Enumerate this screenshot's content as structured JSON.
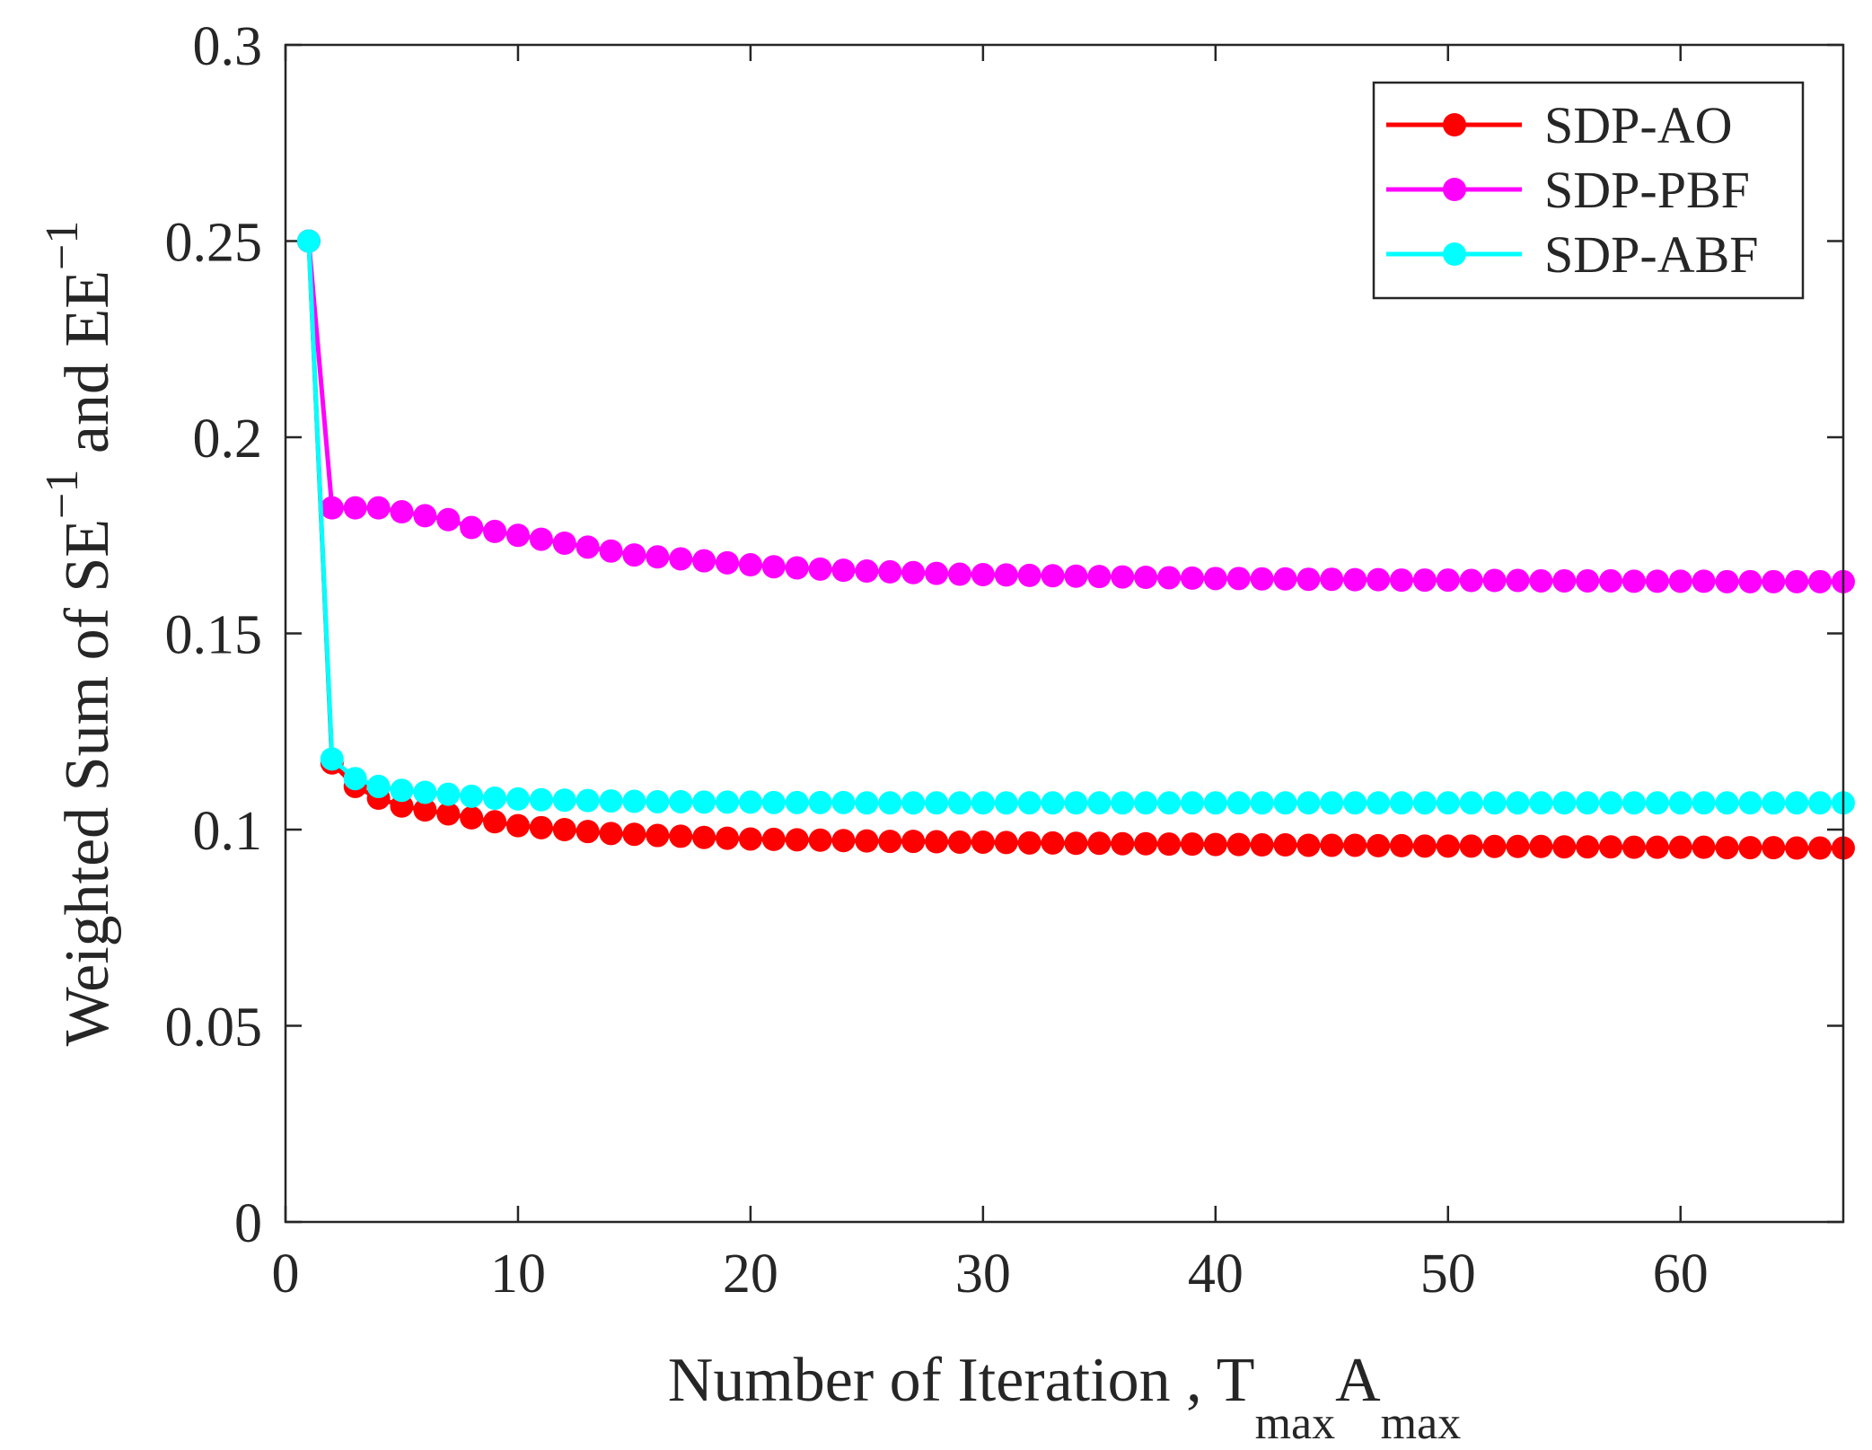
{
  "chart_data": {
    "type": "line",
    "xlabel": {
      "main": "Number of Iteration , T",
      "sub1": "max",
      "mid": "A",
      "sub2": "max"
    },
    "ylabel": {
      "main": "Weighted Sum of SE",
      "sup1": "−1",
      "mid": " and EE",
      "sup2": "−1"
    },
    "xlim": [
      0,
      67
    ],
    "ylim": [
      0,
      0.3
    ],
    "xticks": [
      0,
      10,
      20,
      30,
      40,
      50,
      60
    ],
    "xtick_labels": [
      "0",
      "10",
      "20",
      "30",
      "40",
      "50",
      "60"
    ],
    "yticks": [
      0,
      0.05,
      0.1,
      0.15,
      0.2,
      0.25,
      0.3
    ],
    "ytick_labels": [
      "0",
      "0.05",
      "0.1",
      "0.15",
      "0.2",
      "0.25",
      "0.3"
    ],
    "legend_position": "top-right",
    "x": [
      1,
      2,
      3,
      4,
      5,
      6,
      7,
      8,
      9,
      10,
      11,
      12,
      13,
      14,
      15,
      16,
      17,
      18,
      19,
      20,
      21,
      22,
      23,
      24,
      25,
      26,
      27,
      28,
      29,
      30,
      31,
      32,
      33,
      34,
      35,
      36,
      37,
      38,
      39,
      40,
      41,
      42,
      43,
      44,
      45,
      46,
      47,
      48,
      49,
      50,
      51,
      52,
      53,
      54,
      55,
      56,
      57,
      58,
      59,
      60,
      61,
      62,
      63,
      64,
      65,
      66,
      67
    ],
    "series": [
      {
        "name": "SDP-AO",
        "color": "#ff0000",
        "values": [
          0.25,
          0.117,
          0.111,
          0.108,
          0.106,
          0.105,
          0.104,
          0.103,
          0.102,
          0.101,
          0.1005,
          0.1,
          0.0995,
          0.099,
          0.0988,
          0.0985,
          0.0983,
          0.098,
          0.0978,
          0.0976,
          0.0975,
          0.0974,
          0.0973,
          0.0972,
          0.0971,
          0.097,
          0.097,
          0.0969,
          0.0968,
          0.0968,
          0.0967,
          0.0966,
          0.0966,
          0.0965,
          0.0965,
          0.0964,
          0.0964,
          0.0963,
          0.0963,
          0.0962,
          0.0962,
          0.0961,
          0.0961,
          0.096,
          0.096,
          0.096,
          0.0959,
          0.0959,
          0.0958,
          0.0958,
          0.0958,
          0.0957,
          0.0957,
          0.0957,
          0.0956,
          0.0956,
          0.0956,
          0.0955,
          0.0955,
          0.0955,
          0.0955,
          0.0954,
          0.0954,
          0.0954,
          0.0953,
          0.0953,
          0.0953
        ]
      },
      {
        "name": "SDP-PBF",
        "color": "#ff00ff",
        "values": [
          0.25,
          0.182,
          0.182,
          0.182,
          0.181,
          0.18,
          0.179,
          0.177,
          0.176,
          0.175,
          0.174,
          0.173,
          0.172,
          0.171,
          0.17,
          0.1695,
          0.169,
          0.1685,
          0.168,
          0.1675,
          0.167,
          0.1667,
          0.1664,
          0.1661,
          0.1659,
          0.1657,
          0.1655,
          0.1653,
          0.1651,
          0.165,
          0.1649,
          0.1648,
          0.1647,
          0.1646,
          0.1645,
          0.1644,
          0.1643,
          0.1642,
          0.1641,
          0.164,
          0.164,
          0.1639,
          0.1639,
          0.1638,
          0.1638,
          0.1637,
          0.1637,
          0.1636,
          0.1636,
          0.1636,
          0.1635,
          0.1635,
          0.1635,
          0.1634,
          0.1634,
          0.1634,
          0.1634,
          0.1633,
          0.1633,
          0.1633,
          0.1633,
          0.1632,
          0.1632,
          0.1632,
          0.1632,
          0.1632,
          0.1632
        ]
      },
      {
        "name": "SDP-ABF",
        "color": "#00ffff",
        "values": [
          0.25,
          0.118,
          0.113,
          0.111,
          0.11,
          0.1095,
          0.109,
          0.1085,
          0.108,
          0.1078,
          0.1076,
          0.1075,
          0.1074,
          0.1073,
          0.1072,
          0.1071,
          0.1071,
          0.107,
          0.107,
          0.107,
          0.1069,
          0.1069,
          0.1069,
          0.1069,
          0.1068,
          0.1068,
          0.1068,
          0.1068,
          0.1068,
          0.1068,
          0.1068,
          0.1068,
          0.1068,
          0.1068,
          0.1068,
          0.1068,
          0.1068,
          0.1068,
          0.1068,
          0.1068,
          0.1068,
          0.1068,
          0.1068,
          0.1068,
          0.1068,
          0.1068,
          0.1068,
          0.1068,
          0.1068,
          0.1068,
          0.1068,
          0.1068,
          0.1068,
          0.1068,
          0.1068,
          0.1068,
          0.1068,
          0.1068,
          0.1068,
          0.1068,
          0.1068,
          0.1068,
          0.1068,
          0.1068,
          0.1068,
          0.1068,
          0.1068
        ]
      }
    ]
  }
}
